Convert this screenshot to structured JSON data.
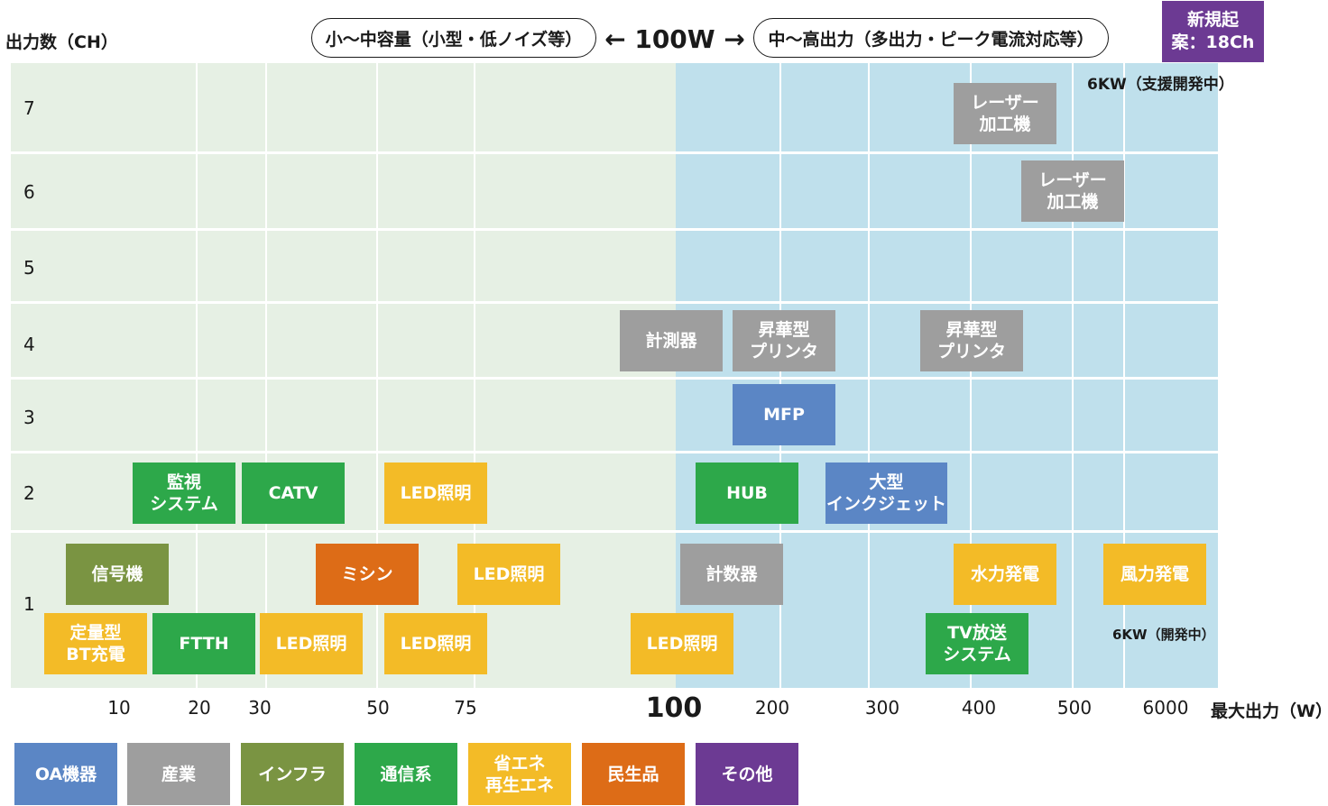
{
  "y_axis_label": "出力数（CH）",
  "x_axis_label": "最大出力（W）",
  "y_ticks": [
    "7",
    "6",
    "5",
    "4",
    "3",
    "2",
    "1"
  ],
  "x_ticks": [
    "10",
    "20",
    "30",
    "50",
    "75",
    "100",
    "200",
    "300",
    "400",
    "500",
    "6000"
  ],
  "header": {
    "left_pill": "小〜中容量（小型・低ノイズ等）",
    "center": "← 100W →",
    "right_pill": "中〜高出力（多出力・ピーク電流対応等）",
    "new_proposal": "新規起\n案：18Ch"
  },
  "notes": {
    "top_right": "6KW（支援開発中）",
    "bottom_right": "6KW（開発中）"
  },
  "colors": {
    "OA": "#5b86c5",
    "industry": "#9e9e9e",
    "infra": "#7a9442",
    "telecom": "#2da84a",
    "energy": "#f3bb27",
    "consumer": "#dd6c17",
    "other": "#6c3a93",
    "left_bg": "#e6f0e4",
    "right_bg": "#bfe0ec"
  },
  "legend": [
    {
      "label": "OA機器",
      "category": "OA"
    },
    {
      "label": "産業",
      "category": "industry"
    },
    {
      "label": "インフラ",
      "category": "infra"
    },
    {
      "label": "通信系",
      "category": "telecom"
    },
    {
      "label": "省エネ\n再生エネ",
      "category": "energy"
    },
    {
      "label": "民生品",
      "category": "consumer"
    },
    {
      "label": "その他",
      "category": "other"
    }
  ],
  "products": [
    {
      "label": "レーザー\n加工機",
      "category": "industry",
      "channels": 7
    },
    {
      "label": "レーザー\n加工機",
      "category": "industry",
      "channels": 6
    },
    {
      "label": "計測器",
      "category": "industry",
      "channels": 4
    },
    {
      "label": "昇華型\nプリンタ",
      "category": "industry",
      "channels": 4
    },
    {
      "label": "昇華型\nプリンタ",
      "category": "industry",
      "channels": 4
    },
    {
      "label": "MFP",
      "category": "OA",
      "channels": 3
    },
    {
      "label": "監視\nシステム",
      "category": "telecom",
      "channels": 2
    },
    {
      "label": "CATV",
      "category": "telecom",
      "channels": 2
    },
    {
      "label": "LED照明",
      "category": "energy",
      "channels": 2
    },
    {
      "label": "HUB",
      "category": "telecom",
      "channels": 2
    },
    {
      "label": "大型\nインクジェット",
      "category": "OA",
      "channels": 2
    },
    {
      "label": "信号機",
      "category": "infra",
      "channels": 1
    },
    {
      "label": "ミシン",
      "category": "consumer",
      "channels": 1
    },
    {
      "label": "LED照明",
      "category": "energy",
      "channels": 1
    },
    {
      "label": "計数器",
      "category": "industry",
      "channels": 1
    },
    {
      "label": "水力発電",
      "category": "energy",
      "channels": 1
    },
    {
      "label": "風力発電",
      "category": "energy",
      "channels": 1
    },
    {
      "label": "定量型\nBT充電",
      "category": "energy",
      "channels": 1
    },
    {
      "label": "FTTH",
      "category": "telecom",
      "channels": 1
    },
    {
      "label": "LED照明",
      "category": "energy",
      "channels": 1
    },
    {
      "label": "LED照明",
      "category": "energy",
      "channels": 1
    },
    {
      "label": "LED照明",
      "category": "energy",
      "channels": 1
    },
    {
      "label": "TV放送\nシステム",
      "category": "telecom",
      "channels": 1
    }
  ]
}
